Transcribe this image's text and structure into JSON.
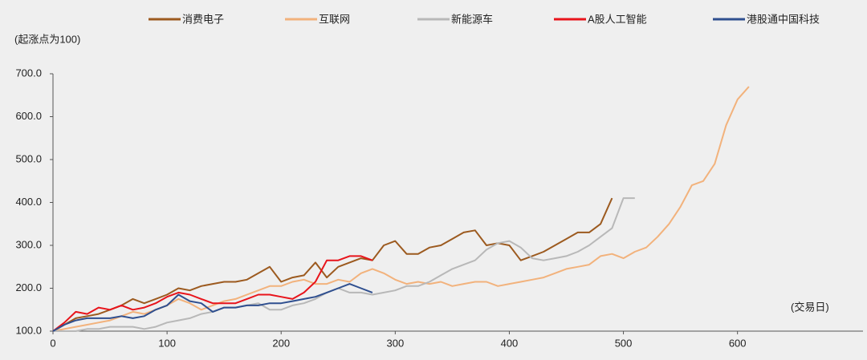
{
  "chart_data": {
    "type": "line",
    "y_label": "(起涨点为100)",
    "x_label": "(交易日)",
    "x": [
      0,
      10,
      20,
      30,
      40,
      50,
      60,
      70,
      80,
      90,
      100,
      110,
      120,
      130,
      140,
      150,
      160,
      170,
      180,
      190,
      200,
      210,
      220,
      230,
      240,
      250,
      260,
      270,
      280,
      290,
      300,
      310,
      320,
      330,
      340,
      350,
      360,
      370,
      380,
      390,
      400,
      410,
      420,
      430,
      440,
      450,
      460,
      470,
      480,
      490,
      500,
      510,
      520,
      530,
      540,
      550,
      560,
      570,
      580,
      590,
      600,
      610
    ],
    "series": [
      {
        "name": "消费电子",
        "color": "#9c5a1f",
        "values": [
          100,
          115,
          130,
          135,
          140,
          150,
          160,
          175,
          165,
          175,
          185,
          200,
          195,
          205,
          210,
          215,
          215,
          220,
          235,
          250,
          215,
          225,
          230,
          260,
          225,
          250,
          260,
          270,
          265,
          300,
          310,
          280,
          280,
          295,
          300,
          315,
          330,
          335,
          300,
          305,
          300,
          265,
          275,
          285,
          300,
          315,
          330,
          330,
          350,
          410,
          null,
          null,
          null,
          null,
          null,
          null,
          null,
          null,
          null,
          null,
          null,
          null
        ]
      },
      {
        "name": "互联网",
        "color": "#f2b27c",
        "values": [
          100,
          105,
          110,
          115,
          120,
          125,
          135,
          145,
          140,
          150,
          160,
          175,
          165,
          150,
          160,
          170,
          175,
          185,
          195,
          205,
          205,
          215,
          220,
          210,
          210,
          220,
          215,
          235,
          245,
          235,
          220,
          210,
          215,
          210,
          215,
          205,
          210,
          215,
          215,
          205,
          210,
          215,
          220,
          225,
          235,
          245,
          250,
          255,
          275,
          280,
          270,
          285,
          295,
          320,
          350,
          390,
          440,
          450,
          490,
          580,
          640,
          670
        ]
      },
      {
        "name": "新能源车",
        "color": "#b8b8b8",
        "values": [
          100,
          100,
          100,
          105,
          105,
          110,
          110,
          110,
          105,
          110,
          120,
          125,
          130,
          140,
          145,
          155,
          155,
          160,
          165,
          150,
          150,
          160,
          165,
          175,
          190,
          200,
          190,
          190,
          185,
          190,
          195,
          205,
          205,
          215,
          230,
          245,
          255,
          265,
          290,
          305,
          310,
          295,
          270,
          265,
          270,
          275,
          285,
          300,
          320,
          340,
          410,
          410,
          null,
          null,
          null,
          null,
          null,
          null,
          null,
          null,
          null,
          null
        ]
      },
      {
        "name": "A股人工智能",
        "color": "#e8141b",
        "values": [
          100,
          120,
          145,
          140,
          155,
          150,
          160,
          150,
          155,
          165,
          180,
          190,
          185,
          175,
          165,
          165,
          165,
          175,
          185,
          185,
          180,
          175,
          190,
          215,
          265,
          265,
          275,
          275,
          265,
          null,
          null,
          null,
          null,
          null,
          null,
          null,
          null,
          null,
          null,
          null,
          null,
          null,
          null,
          null,
          null,
          null,
          null,
          null,
          null,
          null,
          null,
          null,
          null,
          null,
          null,
          null,
          null,
          null,
          null,
          null,
          null,
          null
        ]
      },
      {
        "name": "港股通中国科技",
        "color": "#2f4f8f",
        "values": [
          100,
          115,
          125,
          130,
          130,
          130,
          135,
          130,
          135,
          150,
          160,
          185,
          170,
          165,
          145,
          155,
          155,
          160,
          160,
          165,
          165,
          170,
          175,
          180,
          190,
          200,
          210,
          200,
          190,
          null,
          null,
          null,
          null,
          null,
          null,
          null,
          null,
          null,
          null,
          null,
          null,
          null,
          null,
          null,
          null,
          null,
          null,
          null,
          null,
          null,
          null,
          null,
          null,
          null,
          null,
          null,
          null,
          null,
          null,
          null,
          null,
          null
        ]
      }
    ],
    "xlim": [
      0,
      710
    ],
    "xticks": [
      0,
      100,
      200,
      300,
      400,
      500,
      600
    ],
    "ylim": [
      100,
      700
    ],
    "yticks": [
      {
        "value": 100,
        "label": "100.0"
      },
      {
        "value": 200,
        "label": "200.0"
      },
      {
        "value": 300,
        "label": "300.0"
      },
      {
        "value": 400,
        "label": "400.0"
      },
      {
        "value": 500,
        "label": "500.0"
      },
      {
        "value": 600,
        "label": "600.0"
      },
      {
        "value": 700,
        "label": "700.0"
      }
    ],
    "legend": "top"
  }
}
